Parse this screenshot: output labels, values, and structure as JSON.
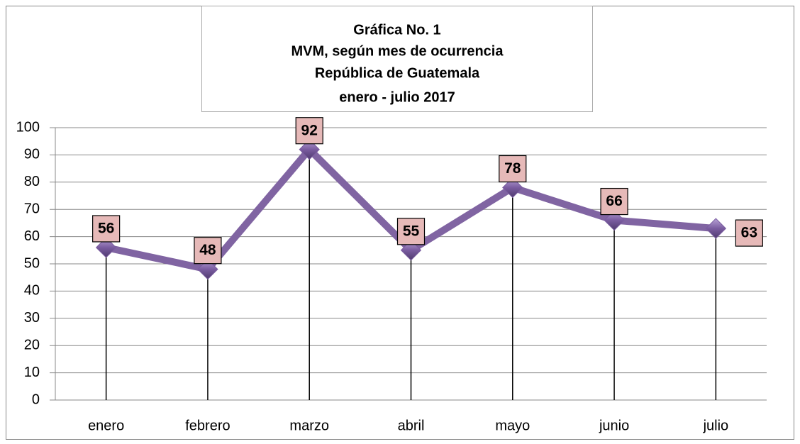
{
  "chart_data": {
    "type": "line",
    "title": [
      "Gráfica No. 1",
      "MVM, según mes de ocurrencia",
      "República de Guatemala",
      "enero - julio 2017"
    ],
    "categories": [
      "enero",
      "febrero",
      "marzo",
      "abril",
      "mayo",
      "junio",
      "julio"
    ],
    "values": [
      56,
      48,
      92,
      55,
      78,
      66,
      63
    ],
    "color": "#8064a2",
    "marker_color": "#7a5ca0",
    "label_fill": "#e6b9b8",
    "ylim": [
      0,
      100
    ],
    "yticks": [
      0,
      10,
      20,
      30,
      40,
      50,
      60,
      70,
      80,
      90,
      100
    ],
    "grid": true,
    "drop_lines": true
  }
}
